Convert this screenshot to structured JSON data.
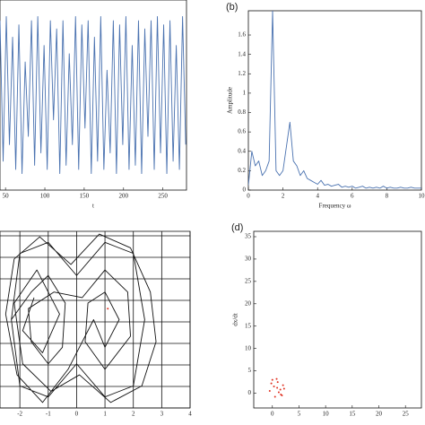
{
  "chart_data": [
    {
      "type": "line",
      "xlabel": "t",
      "xlim": [
        43,
        280
      ],
      "ylim": [
        -1.15,
        1.15
      ],
      "xticks": [
        50,
        100,
        150,
        200,
        250
      ],
      "series": [
        {
          "color": "#4a72b0",
          "x": [
            43,
            47,
            51,
            55,
            59,
            63,
            67,
            71,
            75,
            79,
            83,
            87,
            91,
            95,
            99,
            103,
            107,
            111,
            115,
            119,
            123,
            127,
            131,
            135,
            139,
            143,
            147,
            151,
            155,
            159,
            163,
            167,
            171,
            175,
            179,
            183,
            187,
            191,
            195,
            199,
            203,
            207,
            211,
            215,
            219,
            223,
            227,
            231,
            235,
            239,
            243,
            247,
            251,
            255,
            259,
            263,
            267,
            271,
            275,
            279
          ],
          "values": [
            0.9,
            -0.8,
            0.95,
            -0.6,
            0.7,
            -0.9,
            0.85,
            -0.95,
            0.4,
            -0.5,
            0.9,
            -0.85,
            0.95,
            -0.7,
            0.6,
            -0.9,
            0.9,
            -0.3,
            0.8,
            -0.95,
            0.9,
            -0.85,
            0.5,
            -0.6,
            0.95,
            -0.9,
            0.85,
            -0.4,
            0.9,
            -0.95,
            0.7,
            -0.8,
            0.95,
            -0.9,
            0.3,
            -0.7,
            0.9,
            -0.95,
            0.85,
            -0.6,
            0.95,
            -0.9,
            0.6,
            -0.85,
            0.9,
            -0.95,
            0.8,
            -0.5,
            0.9,
            -0.9,
            0.95,
            -0.7,
            0.85,
            -0.95,
            0.9,
            -0.8,
            0.6,
            -0.9,
            0.95,
            -0.6
          ]
        }
      ]
    },
    {
      "type": "line",
      "panel_label": "(b)",
      "xlabel": "Frequency ω",
      "ylabel": "Amplitude",
      "xlim": [
        0,
        10
      ],
      "ylim": [
        0,
        1.85
      ],
      "xticks": [
        0,
        2,
        4,
        6,
        8,
        10
      ],
      "yticks": [
        0,
        0.2,
        0.4,
        0.6,
        0.8,
        1,
        1.2,
        1.4,
        1.6
      ],
      "series": [
        {
          "color": "#4a72b0",
          "x": [
            0,
            0.2,
            0.4,
            0.6,
            0.8,
            1,
            1.2,
            1.4,
            1.6,
            1.8,
            2,
            2.2,
            2.4,
            2.6,
            2.8,
            3,
            3.2,
            3.4,
            3.6,
            3.8,
            4,
            4.2,
            4.4,
            4.6,
            4.8,
            5,
            5.2,
            5.4,
            5.6,
            5.8,
            6,
            6.2,
            6.4,
            6.6,
            6.8,
            7,
            7.2,
            7.4,
            7.6,
            7.8,
            8,
            8.2,
            8.4,
            8.6,
            8.8,
            9,
            9.2,
            9.4,
            9.6,
            9.8,
            10
          ],
          "values": [
            0.05,
            0.4,
            0.25,
            0.3,
            0.15,
            0.2,
            0.3,
            1.85,
            0.2,
            0.15,
            0.2,
            0.45,
            0.7,
            0.3,
            0.25,
            0.15,
            0.2,
            0.12,
            0.1,
            0.08,
            0.06,
            0.1,
            0.05,
            0.06,
            0.04,
            0.05,
            0.06,
            0.03,
            0.04,
            0.03,
            0.04,
            0.02,
            0.03,
            0.04,
            0.02,
            0.03,
            0.02,
            0.03,
            0.02,
            0.04,
            0.02,
            0.03,
            0.02,
            0.02,
            0.03,
            0.02,
            0.02,
            0.03,
            0.02,
            0.02,
            0.02
          ]
        }
      ]
    },
    {
      "type": "line",
      "grid": true,
      "xlim": [
        -2.7,
        4
      ],
      "ylim": [
        -1.6,
        1.6
      ],
      "xticks": [
        -2,
        -1,
        0,
        1,
        2,
        3,
        4
      ],
      "series": [
        {
          "color": "#111111",
          "x": [
            -2.3,
            -2,
            -1,
            0,
            1,
            2,
            2.4,
            2,
            1,
            0,
            -1,
            -2,
            -2.3,
            -1.6,
            -1,
            -0.4,
            -0.5,
            -1,
            -1.6,
            -1.7,
            -0.8,
            0.2,
            1,
            1.8,
            1.9,
            1,
            0.3,
            0.4,
            1,
            1.5,
            1,
            0.6,
            -0.3,
            -1.2,
            -2.1,
            -2.5,
            -2.2,
            -1.3,
            -0.2,
            0.8,
            1.9,
            2.6,
            2.8,
            2.3,
            1.2,
            0.1,
            -0.9,
            -1.9,
            -2.2,
            -1.4,
            -0.6,
            -1.2,
            -1.9,
            -1.5
          ],
          "values": [
            0,
            1.2,
            1.4,
            0.8,
            1.4,
            1.2,
            0,
            -1.2,
            -1.4,
            -0.8,
            -1.4,
            -1.2,
            0,
            0.5,
            0.8,
            0.3,
            -0.5,
            -0.8,
            -0.4,
            0.2,
            0.5,
            0.4,
            0.9,
            0.5,
            -0.3,
            -0.9,
            -0.4,
            0.3,
            0.5,
            0,
            -0.5,
            0,
            -0.9,
            -1.5,
            -1.0,
            0.1,
            1.1,
            1.5,
            1.0,
            1.55,
            1.3,
            0.5,
            -0.4,
            -1.2,
            -1.5,
            -1.0,
            -1.3,
            -0.8,
            0.3,
            0.9,
            0.1,
            -0.6,
            -0.2,
            0.4
          ]
        },
        {
          "color": "#e03020",
          "x": [
            1.1
          ],
          "values": [
            0.2
          ],
          "marker": true
        }
      ]
    },
    {
      "type": "scatter",
      "panel_label": "(d)",
      "ylabel": "dx/dt",
      "xlim": [
        -3.5,
        28
      ],
      "ylim": [
        -3.3,
        36.2
      ],
      "xticks": [
        0,
        5,
        10,
        15,
        20,
        25
      ],
      "yticks": [
        0,
        5,
        10,
        15,
        20,
        25,
        30,
        35
      ],
      "series": [
        {
          "color": "#e03020",
          "x": [
            -0.5,
            0.3,
            1,
            1.5,
            2,
            0.8,
            -0.2,
            1.8,
            0.5,
            1.2,
            2.2,
            0,
            1.6,
            0.9
          ],
          "values": [
            0.5,
            1.5,
            2.5,
            0.8,
            1.8,
            3.2,
            2.2,
            -0.5,
            -0.8,
            0.2,
            1,
            3,
            -0.3,
            1.2
          ]
        }
      ]
    }
  ]
}
